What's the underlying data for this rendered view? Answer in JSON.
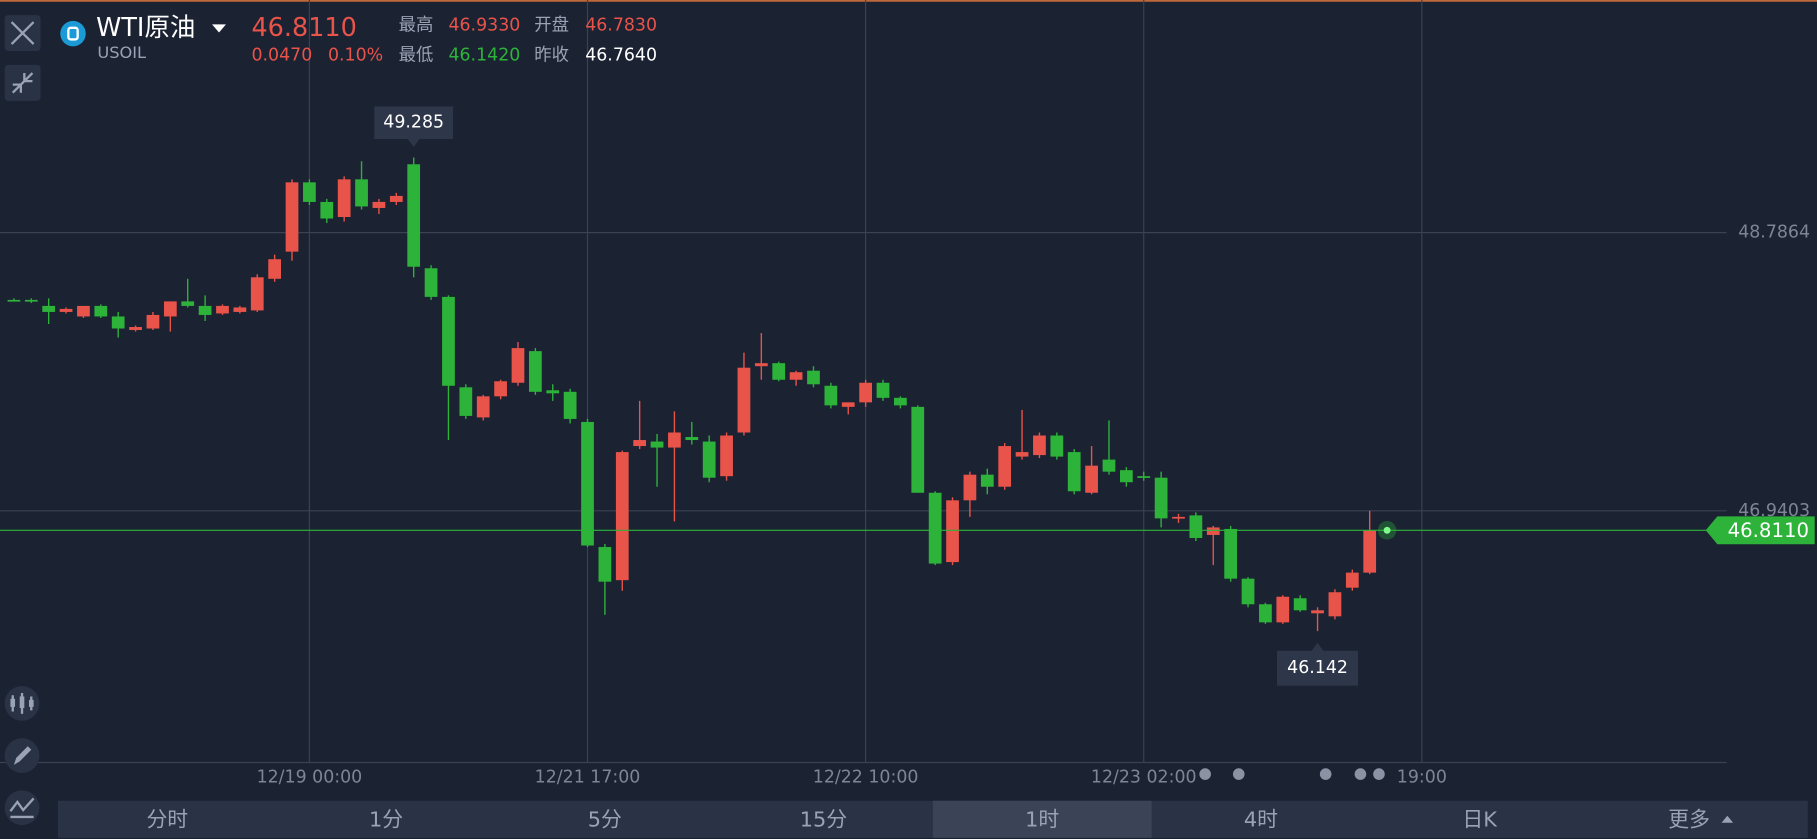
{
  "header": {
    "name": "WTI原油",
    "symbol": "USOIL",
    "price": "46.8110",
    "change": "0.0470",
    "change_pct": "0.10%",
    "stats": [
      {
        "label": "最高",
        "value": "46.9330"
      },
      {
        "label": "开盘",
        "value": "46.7830"
      },
      {
        "label": "最低",
        "value": "46.1420"
      },
      {
        "label": "昨收",
        "value": "46.7640"
      }
    ]
  },
  "chart_data": {
    "type": "candlestick",
    "up_color": "#e8534a",
    "down_color": "#2db33a",
    "categories": [
      null,
      null,
      null,
      null,
      null,
      null,
      null,
      null,
      null,
      null,
      null,
      null,
      null,
      null,
      null,
      null,
      null,
      "12/19 00:00",
      null,
      null,
      null,
      null,
      null,
      null,
      null,
      null,
      null,
      null,
      null,
      null,
      null,
      null,
      null,
      "12/21 17:00",
      null,
      null,
      null,
      null,
      null,
      null,
      null,
      null,
      null,
      null,
      null,
      null,
      null,
      null,
      null,
      "12/22 10:00",
      null,
      null,
      null,
      null,
      null,
      null,
      null,
      null,
      null,
      null,
      null,
      null,
      null,
      null,
      null,
      "12/23 02:00",
      null,
      null,
      null,
      null,
      null,
      null,
      null,
      null,
      null,
      null,
      null,
      null,
      null,
      null,
      null,
      "19:00",
      null,
      null,
      null,
      null,
      null,
      null,
      null,
      null,
      null,
      null,
      null,
      null,
      null,
      null,
      null,
      null,
      null
    ],
    "open": [
      48.34,
      48.34,
      48.3,
      48.26,
      48.23,
      48.3,
      48.23,
      48.14,
      48.15,
      48.23,
      48.33,
      48.3,
      48.25,
      48.26,
      48.27,
      48.48,
      48.66,
      49.12,
      48.99,
      48.89,
      49.14,
      48.95,
      48.99,
      49.24,
      48.55,
      48.36,
      47.76,
      47.56,
      47.7,
      47.79,
      48.0,
      47.74,
      47.73,
      47.53,
      46.7,
      46.48,
      47.37,
      47.4,
      47.36,
      47.43,
      47.4,
      47.17,
      47.46,
      47.9,
      47.92,
      47.81,
      47.87,
      47.77,
      47.63,
      47.66,
      47.79,
      47.69,
      47.63,
      47.06,
      46.6,
      47.01,
      47.18,
      47.1,
      47.3,
      47.31,
      47.44,
      47.33,
      47.06,
      47.28,
      47.21,
      47.17,
      47.16,
      46.89,
      46.91,
      46.78,
      46.82,
      46.49,
      46.32,
      46.2,
      46.36,
      46.26,
      46.24,
      46.43,
      46.53,
      null,
      null,
      null,
      null,
      null,
      null,
      null,
      null,
      null,
      null,
      null,
      null,
      null,
      null,
      null,
      null,
      null,
      null,
      null,
      null
    ],
    "high": [
      48.35,
      48.35,
      48.35,
      48.29,
      48.3,
      48.31,
      48.26,
      48.17,
      48.26,
      48.33,
      48.48,
      48.37,
      48.31,
      48.3,
      48.51,
      48.64,
      49.14,
      49.14,
      49.01,
      49.16,
      49.26,
      49.01,
      49.05,
      49.285,
      48.57,
      48.37,
      47.78,
      47.71,
      47.81,
      48.06,
      48.02,
      47.78,
      47.75,
      47.55,
      46.72,
      47.34,
      47.67,
      47.45,
      47.6,
      47.53,
      47.44,
      47.46,
      47.99,
      48.12,
      47.93,
      47.87,
      47.9,
      47.79,
      47.66,
      47.81,
      47.81,
      47.7,
      47.64,
      47.07,
      47.03,
      47.2,
      47.22,
      47.39,
      47.61,
      47.46,
      47.46,
      47.35,
      47.37,
      47.54,
      47.23,
      47.2,
      47.2,
      46.92,
      46.93,
      46.84,
      46.84,
      46.5,
      46.33,
      46.38,
      46.38,
      46.3,
      46.42,
      46.55,
      46.94,
      null,
      null,
      null,
      null,
      null,
      null,
      null,
      null,
      null,
      null,
      null,
      null,
      null,
      null,
      null,
      null,
      null,
      null,
      null,
      null
    ],
    "low": [
      48.33,
      48.32,
      48.18,
      48.25,
      48.22,
      48.22,
      48.09,
      48.13,
      48.14,
      48.13,
      48.29,
      48.2,
      48.24,
      48.25,
      48.26,
      48.46,
      48.6,
      48.97,
      48.85,
      48.86,
      48.94,
      48.91,
      48.97,
      48.49,
      48.34,
      47.41,
      47.55,
      47.54,
      47.68,
      47.77,
      47.71,
      47.67,
      47.52,
      46.7,
      46.25,
      46.41,
      47.35,
      47.1,
      46.87,
      47.38,
      47.13,
      47.14,
      47.44,
      47.81,
      47.8,
      47.77,
      47.76,
      47.62,
      47.58,
      47.63,
      47.67,
      47.62,
      47.06,
      46.58,
      46.58,
      46.9,
      47.05,
      47.08,
      47.28,
      47.29,
      47.28,
      47.05,
      47.05,
      47.18,
      47.1,
      47.14,
      46.83,
      46.86,
      46.74,
      46.58,
      46.47,
      46.3,
      46.19,
      46.19,
      46.27,
      46.142,
      46.22,
      46.41,
      46.52,
      null,
      null,
      null,
      null,
      null,
      null,
      null,
      null,
      null,
      null,
      null,
      null,
      null,
      null,
      null,
      null,
      null,
      null,
      null,
      null
    ],
    "close": [
      48.34,
      48.33,
      48.26,
      48.28,
      48.3,
      48.23,
      48.15,
      48.16,
      48.24,
      48.33,
      48.3,
      48.24,
      48.3,
      48.29,
      48.49,
      48.61,
      49.12,
      48.99,
      48.88,
      49.14,
      48.96,
      48.99,
      49.03,
      48.56,
      48.36,
      47.77,
      47.57,
      47.7,
      47.8,
      48.02,
      47.73,
      47.72,
      47.55,
      46.71,
      46.47,
      47.33,
      47.41,
      47.36,
      47.46,
      47.41,
      47.16,
      47.44,
      47.89,
      47.92,
      47.81,
      47.86,
      47.78,
      47.64,
      47.66,
      47.79,
      47.69,
      47.64,
      47.06,
      46.59,
      47.01,
      47.18,
      47.1,
      47.37,
      47.33,
      47.44,
      47.3,
      47.07,
      47.24,
      47.2,
      47.13,
      47.16,
      46.89,
      46.9,
      46.76,
      46.83,
      46.49,
      46.32,
      46.2,
      46.37,
      46.28,
      46.28,
      46.4,
      46.53,
      46.811,
      null,
      null,
      null,
      null,
      null,
      null,
      null,
      null,
      null,
      null,
      null,
      null,
      null,
      null,
      null,
      null,
      null,
      null,
      null,
      null
    ],
    "ylim": [
      45.27,
      50.33
    ],
    "yticks": [
      48.7864,
      46.9403
    ],
    "grid": true,
    "last_price": {
      "value": 46.811,
      "label": "46.8110",
      "color": "#2db33a"
    }
  },
  "tabs": [
    "分时",
    "1分",
    "5分",
    "15分",
    "1时",
    "4时",
    "日K",
    "更多"
  ],
  "active_tab": 4
}
